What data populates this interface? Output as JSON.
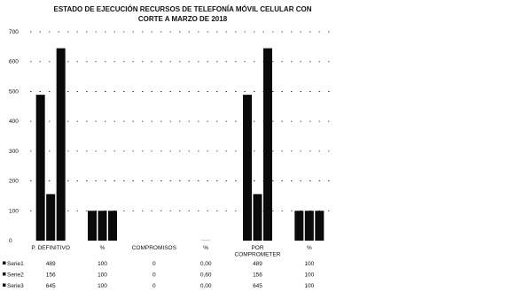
{
  "chart_data": {
    "type": "bar",
    "title_lines": [
      "ESTADO DE EJECUCIÓN RECURSOS DE TELEFONÍA MÓVIL CELULAR CON",
      "CORTE A MARZO DE 2018"
    ],
    "categories": [
      [
        "P. DEFINITIVO"
      ],
      [
        "%"
      ],
      [
        "COMPROMISOS"
      ],
      [
        "%"
      ],
      [
        "POR",
        "COMPROMETER"
      ],
      [
        "%"
      ]
    ],
    "series": [
      {
        "name": "Serie1",
        "values": [
          489,
          100,
          0,
          0.0,
          489,
          100
        ],
        "labels": [
          "489",
          "100",
          "0",
          "0,00",
          "489",
          "100"
        ]
      },
      {
        "name": "Serie2",
        "values": [
          156,
          100,
          0,
          0.6,
          156,
          100
        ],
        "labels": [
          "156",
          "100",
          "0",
          "0,60",
          "156",
          "100"
        ]
      },
      {
        "name": "Serie3",
        "values": [
          645,
          100,
          0,
          0.0,
          645,
          100
        ],
        "labels": [
          "645",
          "100",
          "0",
          "0,00",
          "645",
          "100"
        ]
      }
    ],
    "ylim": [
      0,
      700
    ],
    "yticks": [
      "0",
      "100",
      "200",
      "300",
      "400",
      "500",
      "600",
      "700"
    ],
    "grid": true,
    "legend": "table-below",
    "colors": {
      "bar": "#0a0a0a",
      "text": "#111111",
      "grid": "#222222"
    }
  }
}
